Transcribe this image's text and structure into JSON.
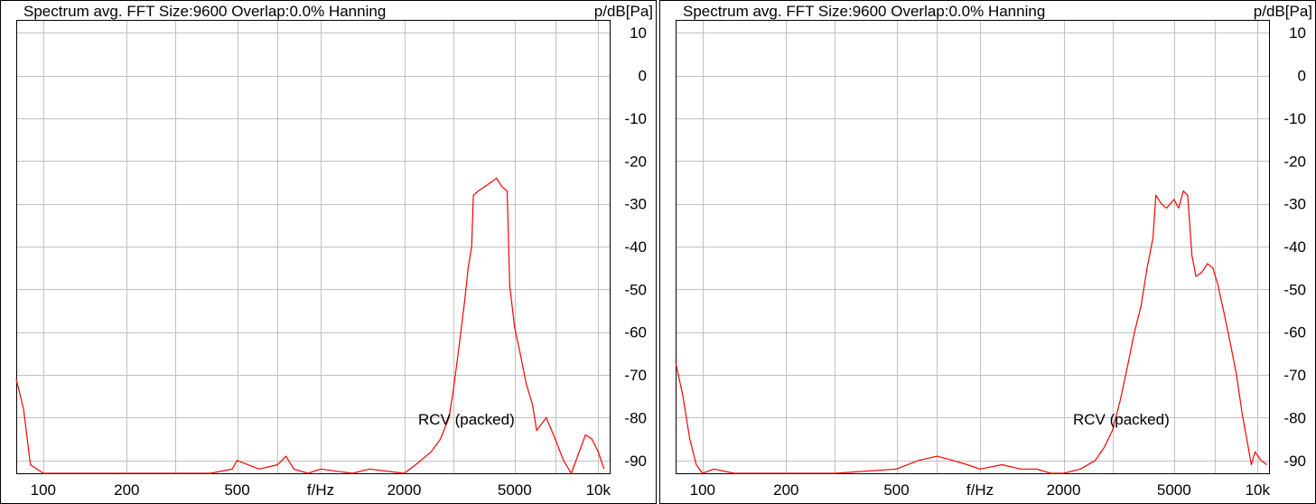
{
  "colors": {
    "trace": "#ff0000",
    "grid": "#c0c0c0",
    "frame": "#000000",
    "background": "#ffffff"
  },
  "chart_data": [
    {
      "type": "line",
      "title": "Spectrum avg.  FFT Size:9600  Overlap:0.0%  Hanning",
      "ylabel": "p/dB[Pa]",
      "xlabel": "f/Hz",
      "xscale": "log",
      "xlim": [
        80,
        11000
      ],
      "ylim": [
        -93,
        13
      ],
      "grid": true,
      "x_ticks": [
        {
          "value": 100,
          "label": "100"
        },
        {
          "value": 200,
          "label": "200"
        },
        {
          "value": 500,
          "label": "500"
        },
        {
          "value": 2000,
          "label": "2000"
        },
        {
          "value": 5000,
          "label": "5000"
        },
        {
          "value": 10000,
          "label": "10k"
        }
      ],
      "x_grid": [
        100,
        200,
        300,
        500,
        700,
        1000,
        2000,
        3000,
        5000,
        7000,
        10000
      ],
      "y_ticks": [
        10,
        0,
        -10,
        -20,
        -30,
        -40,
        -50,
        -60,
        -70,
        -80,
        -90
      ],
      "annotation": "RCV (packed)",
      "series": [
        {
          "values": [
            [
              80,
              -71
            ],
            [
              85,
              -78
            ],
            [
              90,
              -91
            ],
            [
              95,
              -92
            ],
            [
              100,
              -93
            ],
            [
              110,
              -93
            ],
            [
              300,
              -93
            ],
            [
              400,
              -93
            ],
            [
              480,
              -92
            ],
            [
              500,
              -90
            ],
            [
              600,
              -92
            ],
            [
              700,
              -91
            ],
            [
              750,
              -89
            ],
            [
              800,
              -92
            ],
            [
              900,
              -93
            ],
            [
              1000,
              -92
            ],
            [
              1300,
              -93
            ],
            [
              1500,
              -92
            ],
            [
              2000,
              -93
            ],
            [
              2200,
              -91
            ],
            [
              2500,
              -88
            ],
            [
              2700,
              -85
            ],
            [
              2900,
              -80
            ],
            [
              3000,
              -74
            ],
            [
              3100,
              -67
            ],
            [
              3200,
              -60
            ],
            [
              3300,
              -53
            ],
            [
              3400,
              -45
            ],
            [
              3500,
              -40
            ],
            [
              3550,
              -28
            ],
            [
              3700,
              -27
            ],
            [
              3900,
              -26
            ],
            [
              4100,
              -25
            ],
            [
              4300,
              -24
            ],
            [
              4500,
              -26
            ],
            [
              4700,
              -27
            ],
            [
              4800,
              -49
            ],
            [
              5000,
              -59
            ],
            [
              5200,
              -64
            ],
            [
              5500,
              -72
            ],
            [
              5800,
              -77
            ],
            [
              6000,
              -83
            ],
            [
              6500,
              -80
            ],
            [
              7000,
              -85
            ],
            [
              7500,
              -90
            ],
            [
              8000,
              -93
            ],
            [
              9000,
              -84
            ],
            [
              9500,
              -85
            ],
            [
              10000,
              -88
            ],
            [
              10500,
              -92
            ]
          ]
        }
      ]
    },
    {
      "type": "line",
      "title": "Spectrum avg.  FFT Size:9600  Overlap:0.0%  Hanning",
      "ylabel": "p/dB[Pa]",
      "xlabel": "f/Hz",
      "xscale": "log",
      "xlim": [
        80,
        11000
      ],
      "ylim": [
        -93,
        13
      ],
      "grid": true,
      "x_ticks": [
        {
          "value": 100,
          "label": "100"
        },
        {
          "value": 200,
          "label": "200"
        },
        {
          "value": 500,
          "label": "500"
        },
        {
          "value": 2000,
          "label": "2000"
        },
        {
          "value": 5000,
          "label": "5000"
        },
        {
          "value": 10000,
          "label": "10k"
        }
      ],
      "x_grid": [
        100,
        200,
        300,
        500,
        700,
        1000,
        2000,
        3000,
        5000,
        7000,
        10000
      ],
      "y_ticks": [
        10,
        0,
        -10,
        -20,
        -30,
        -40,
        -50,
        -60,
        -70,
        -80,
        -90
      ],
      "annotation": "RCV (packed)",
      "series": [
        {
          "values": [
            [
              80,
              -67
            ],
            [
              85,
              -75
            ],
            [
              90,
              -85
            ],
            [
              95,
              -91
            ],
            [
              100,
              -93
            ],
            [
              110,
              -92
            ],
            [
              130,
              -93
            ],
            [
              300,
              -93
            ],
            [
              500,
              -92
            ],
            [
              600,
              -90
            ],
            [
              700,
              -89
            ],
            [
              800,
              -90
            ],
            [
              900,
              -91
            ],
            [
              1000,
              -92
            ],
            [
              1200,
              -91
            ],
            [
              1400,
              -92
            ],
            [
              1600,
              -92
            ],
            [
              1800,
              -93
            ],
            [
              2000,
              -93
            ],
            [
              2300,
              -92
            ],
            [
              2600,
              -90
            ],
            [
              2800,
              -87
            ],
            [
              3000,
              -83
            ],
            [
              3200,
              -76
            ],
            [
              3400,
              -68
            ],
            [
              3600,
              -60
            ],
            [
              3800,
              -54
            ],
            [
              4000,
              -45
            ],
            [
              4200,
              -38
            ],
            [
              4300,
              -28
            ],
            [
              4500,
              -30
            ],
            [
              4700,
              -31
            ],
            [
              5000,
              -29
            ],
            [
              5200,
              -31
            ],
            [
              5400,
              -27
            ],
            [
              5600,
              -28
            ],
            [
              5800,
              -42
            ],
            [
              6000,
              -47
            ],
            [
              6300,
              -46
            ],
            [
              6600,
              -44
            ],
            [
              6900,
              -45
            ],
            [
              7200,
              -49
            ],
            [
              7600,
              -56
            ],
            [
              8000,
              -63
            ],
            [
              8400,
              -70
            ],
            [
              8800,
              -79
            ],
            [
              9200,
              -86
            ],
            [
              9500,
              -91
            ],
            [
              9800,
              -88
            ],
            [
              10300,
              -90
            ],
            [
              10800,
              -91
            ]
          ]
        }
      ]
    }
  ]
}
